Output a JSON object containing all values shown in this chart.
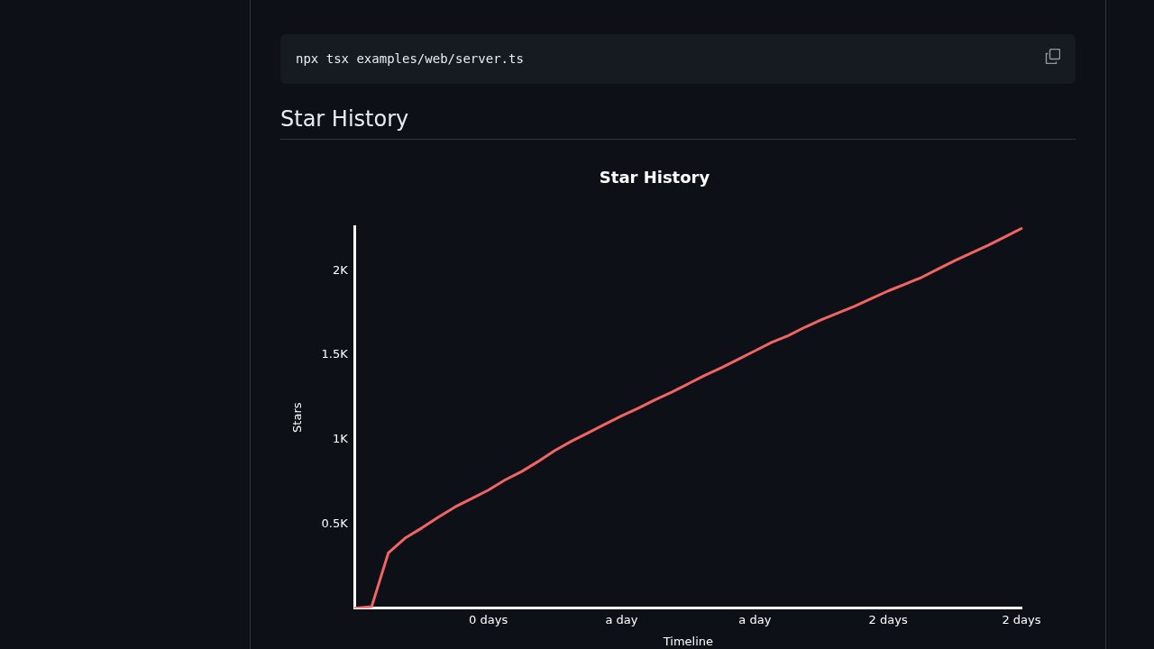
{
  "chart_data": {
    "type": "line",
    "title": "Star History",
    "xlabel": "Timeline",
    "ylabel": "Stars",
    "annotations": [
      "Star History",
      "npx tsx examples/web/server.ts"
    ],
    "categories": [
      null,
      null,
      null,
      null,
      null,
      null,
      null,
      null,
      "0 days",
      null,
      null,
      null,
      null,
      null,
      null,
      null,
      "a day",
      null,
      null,
      null,
      null,
      null,
      null,
      null,
      "a day",
      null,
      null,
      null,
      null,
      null,
      null,
      null,
      "2 days",
      null,
      null,
      null,
      null,
      null,
      null,
      null,
      "2 days"
    ],
    "series": [
      {
        "color": "#f26464",
        "values": [
          0,
          10,
          328,
          415,
          475,
          540,
          600,
          650,
          700,
          760,
          810,
          870,
          935,
          990,
          1040,
          1090,
          1140,
          1185,
          1235,
          1280,
          1330,
          1380,
          1425,
          1475,
          1525,
          1575,
          1615,
          1665,
          1710,
          1750,
          1790,
          1835,
          1880,
          1920,
          1960,
          2010,
          2060,
          2105,
          2150,
          2200,
          2250
        ]
      }
    ],
    "ylim": [
      0,
      2260
    ],
    "yticks": [
      {
        "value": 500,
        "label": "0.5K"
      },
      {
        "value": 1000,
        "label": "1K"
      },
      {
        "value": 1500,
        "label": "1.5K"
      },
      {
        "value": 2000,
        "label": "2K"
      }
    ],
    "legend": false,
    "marker": "none",
    "grid": false
  }
}
